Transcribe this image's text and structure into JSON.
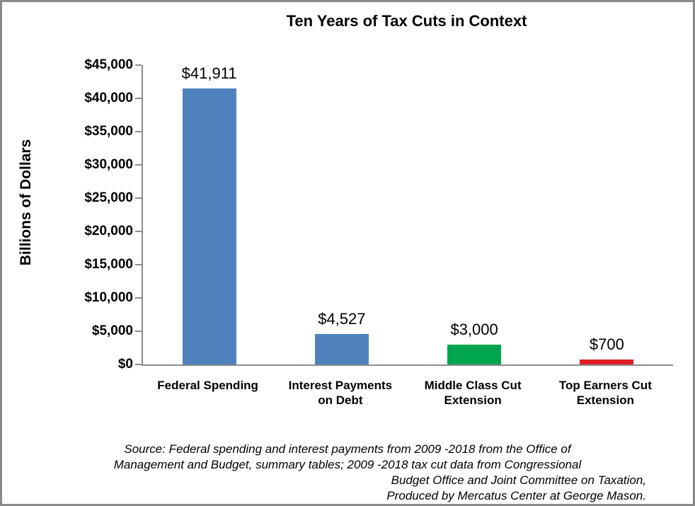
{
  "frame": {
    "border_color": "#8a8a8a",
    "background": "#ffffff"
  },
  "chart_data": {
    "type": "bar",
    "title": "Ten Years of Tax Cuts in Context",
    "ylabel": "Billions of Dollars",
    "xlabel": "",
    "categories": [
      "Federal Spending",
      "Interest Payments on Debt",
      "Middle Class Cut Extension",
      "Top Earners Cut Extension"
    ],
    "values": [
      41911,
      4527,
      3000,
      700
    ],
    "value_labels": [
      "$41,911",
      "$4,527",
      "$3,000",
      "$700"
    ],
    "bar_colors": [
      "#4f81bd",
      "#4f81bd",
      "#00a550",
      "#e01b22"
    ],
    "ylim": [
      0,
      45000
    ],
    "ytick_step": 5000,
    "ytick_labels": [
      "$0",
      "$5,000",
      "$10,000",
      "$15,000",
      "$20,000",
      "$25,000",
      "$30,000",
      "$35,000",
      "$40,000",
      "$45,000"
    ],
    "axis_color": "#8c8c8c",
    "grid": false,
    "legend": "none"
  },
  "source": {
    "lines": [
      "Source: Federal spending and interest payments from 2009 -2018 from the Office of",
      "Management and Budget, summary tables; 2009 -2018 tax cut data from Congressional",
      "Budget Office and Joint Committee on Taxation,",
      "Produced by Mercatus Center at George Mason."
    ]
  }
}
